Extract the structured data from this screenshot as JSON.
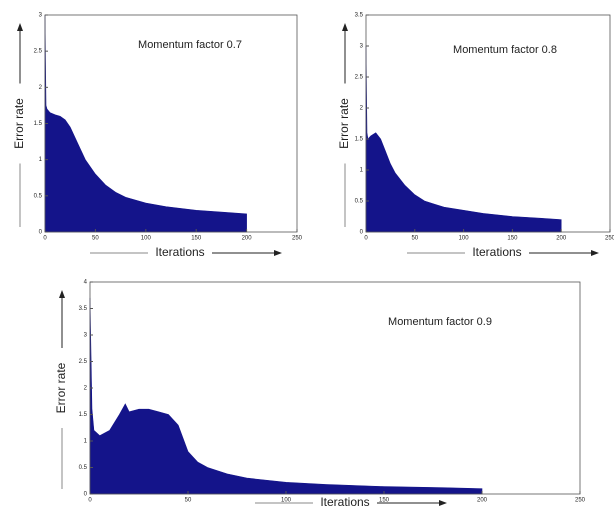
{
  "chart_data": [
    {
      "type": "area",
      "title": "Momentum factor 0.7",
      "x_label": "Iterations",
      "y_label": "Error rate",
      "color": "#14148a",
      "x": [
        0,
        1,
        2,
        5,
        10,
        15,
        20,
        25,
        30,
        35,
        40,
        50,
        60,
        70,
        80,
        100,
        120,
        150,
        180,
        200
      ],
      "values": [
        3,
        1.75,
        1.7,
        1.65,
        1.62,
        1.6,
        1.55,
        1.45,
        1.3,
        1.15,
        1,
        0.8,
        0.65,
        0.55,
        0.48,
        0.4,
        0.35,
        0.3,
        0.27,
        0.25
      ],
      "xlim": [
        0,
        250
      ],
      "xticks": [
        0,
        50,
        100,
        150,
        200,
        250
      ],
      "ylim": [
        0,
        3
      ],
      "yticks": [
        0,
        0.5,
        1,
        1.5,
        2,
        2.5,
        3
      ]
    },
    {
      "type": "area",
      "title": "Momentum factor 0.8",
      "x_label": "Iterations",
      "y_label": "Error rate",
      "color": "#14148a",
      "x": [
        0,
        1,
        2,
        5,
        10,
        15,
        20,
        25,
        30,
        40,
        50,
        60,
        70,
        80,
        100,
        120,
        150,
        180,
        200
      ],
      "values": [
        3,
        1.6,
        1.5,
        1.55,
        1.6,
        1.5,
        1.3,
        1.1,
        0.95,
        0.75,
        0.6,
        0.5,
        0.45,
        0.4,
        0.35,
        0.3,
        0.25,
        0.22,
        0.2
      ],
      "xlim": [
        0,
        250
      ],
      "xticks": [
        0,
        50,
        100,
        150,
        200,
        250
      ],
      "ylim": [
        0,
        3.5
      ],
      "yticks": [
        0,
        0.5,
        1,
        1.5,
        2,
        2.5,
        3,
        3.5
      ]
    },
    {
      "type": "area",
      "title": "Momentum factor 0.9",
      "x_label": "Iterations",
      "y_label": "Error rate",
      "color": "#14148a",
      "x": [
        0,
        1,
        2,
        5,
        10,
        15,
        18,
        20,
        25,
        30,
        35,
        40,
        45,
        50,
        55,
        60,
        70,
        80,
        100,
        120,
        150,
        180,
        200
      ],
      "values": [
        3.7,
        1.6,
        1.2,
        1.1,
        1.2,
        1.5,
        1.7,
        1.55,
        1.6,
        1.6,
        1.55,
        1.5,
        1.3,
        0.8,
        0.6,
        0.5,
        0.38,
        0.3,
        0.22,
        0.18,
        0.14,
        0.12,
        0.1
      ],
      "xlim": [
        0,
        250
      ],
      "xticks": [
        0,
        50,
        100,
        150,
        200,
        250
      ],
      "ylim": [
        0,
        4
      ],
      "yticks": [
        0,
        0.5,
        1,
        1.5,
        2,
        2.5,
        3,
        3.5,
        4
      ]
    }
  ]
}
